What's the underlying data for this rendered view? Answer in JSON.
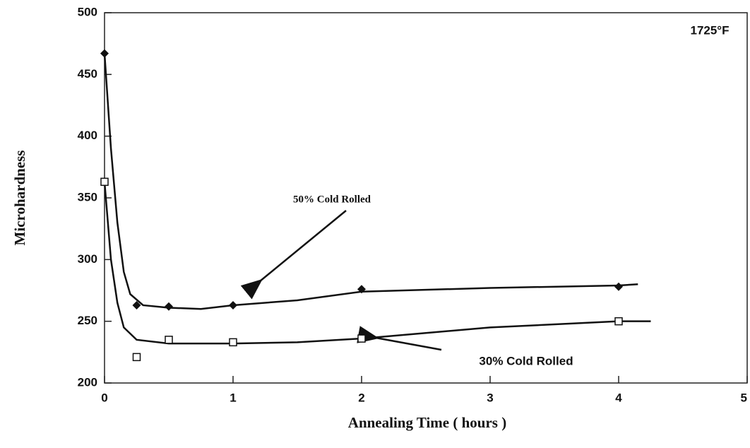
{
  "chart_data": {
    "type": "scatter",
    "xlabel": "Annealing Time ( hours )",
    "ylabel": "Microhardness",
    "xlim": [
      0,
      5
    ],
    "xticks": [
      0,
      1,
      2,
      3,
      4,
      5
    ],
    "ylim": [
      200,
      500
    ],
    "yticks": [
      200,
      250,
      300,
      350,
      400,
      450,
      500
    ],
    "annotations": [
      "1725°F",
      "50% Cold Rolled",
      "30% Cold Rolled"
    ],
    "series": [
      {
        "marker": "diamond",
        "color": "#111111",
        "x": [
          0,
          0.25,
          0.5,
          1,
          2,
          4
        ],
        "values": [
          467,
          263,
          262,
          263,
          276,
          278
        ],
        "fit_x": [
          0,
          0.05,
          0.1,
          0.15,
          0.2,
          0.3,
          0.5,
          0.75,
          1,
          1.5,
          2,
          3,
          4,
          4.15
        ],
        "fit_values": [
          467,
          390,
          330,
          290,
          272,
          263,
          261,
          260,
          263,
          267,
          274,
          277,
          279,
          280
        ]
      },
      {
        "marker": "square",
        "color": "#111111",
        "x": [
          0,
          0.25,
          0.5,
          1,
          2,
          4
        ],
        "values": [
          363,
          221,
          235,
          233,
          236,
          250
        ],
        "fit_x": [
          0,
          0.05,
          0.1,
          0.15,
          0.25,
          0.5,
          1,
          1.5,
          2,
          3,
          4,
          4.25
        ],
        "fit_values": [
          363,
          300,
          265,
          245,
          235,
          232,
          232,
          233,
          236,
          245,
          250,
          250
        ]
      }
    ]
  }
}
